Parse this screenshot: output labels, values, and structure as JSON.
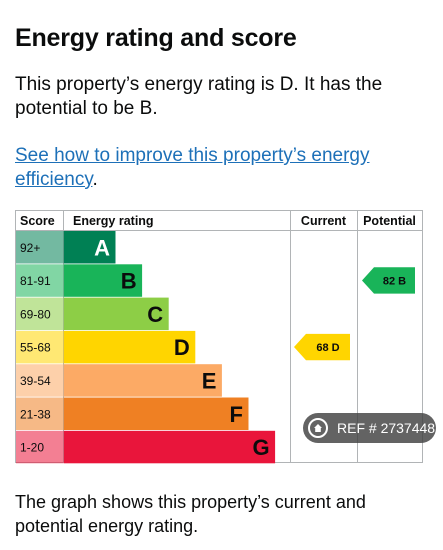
{
  "header": {
    "title": "Energy rating and score",
    "summary": "This property’s energy rating is D. It has the potential to be B.",
    "link_text": "See how to improve this property’s energy efficiency",
    "link_suffix": "."
  },
  "chart_data": {
    "type": "bar",
    "title": "",
    "columns": [
      "Score",
      "Energy rating",
      "Current",
      "Potential"
    ],
    "bands": [
      {
        "score": "92+",
        "letter": "A",
        "color": "#008054"
      },
      {
        "score": "81-91",
        "letter": "B",
        "color": "#19b459"
      },
      {
        "score": "69-80",
        "letter": "C",
        "color": "#8dce46"
      },
      {
        "score": "55-68",
        "letter": "D",
        "color": "#ffd500"
      },
      {
        "score": "39-54",
        "letter": "E",
        "color": "#fcaa65"
      },
      {
        "score": "21-38",
        "letter": "F",
        "color": "#ef8023"
      },
      {
        "score": "1-20",
        "letter": "G",
        "color": "#e9153b"
      }
    ],
    "current": {
      "value": 68,
      "rating": "D",
      "label": "68 D"
    },
    "potential": {
      "value": 82,
      "rating": "B",
      "label": "82 B"
    }
  },
  "footer": {
    "text": "The graph shows this property’s current and potential energy rating."
  },
  "overlay": {
    "ref_text": "REF # 2737448",
    "icon": "home-icon"
  }
}
